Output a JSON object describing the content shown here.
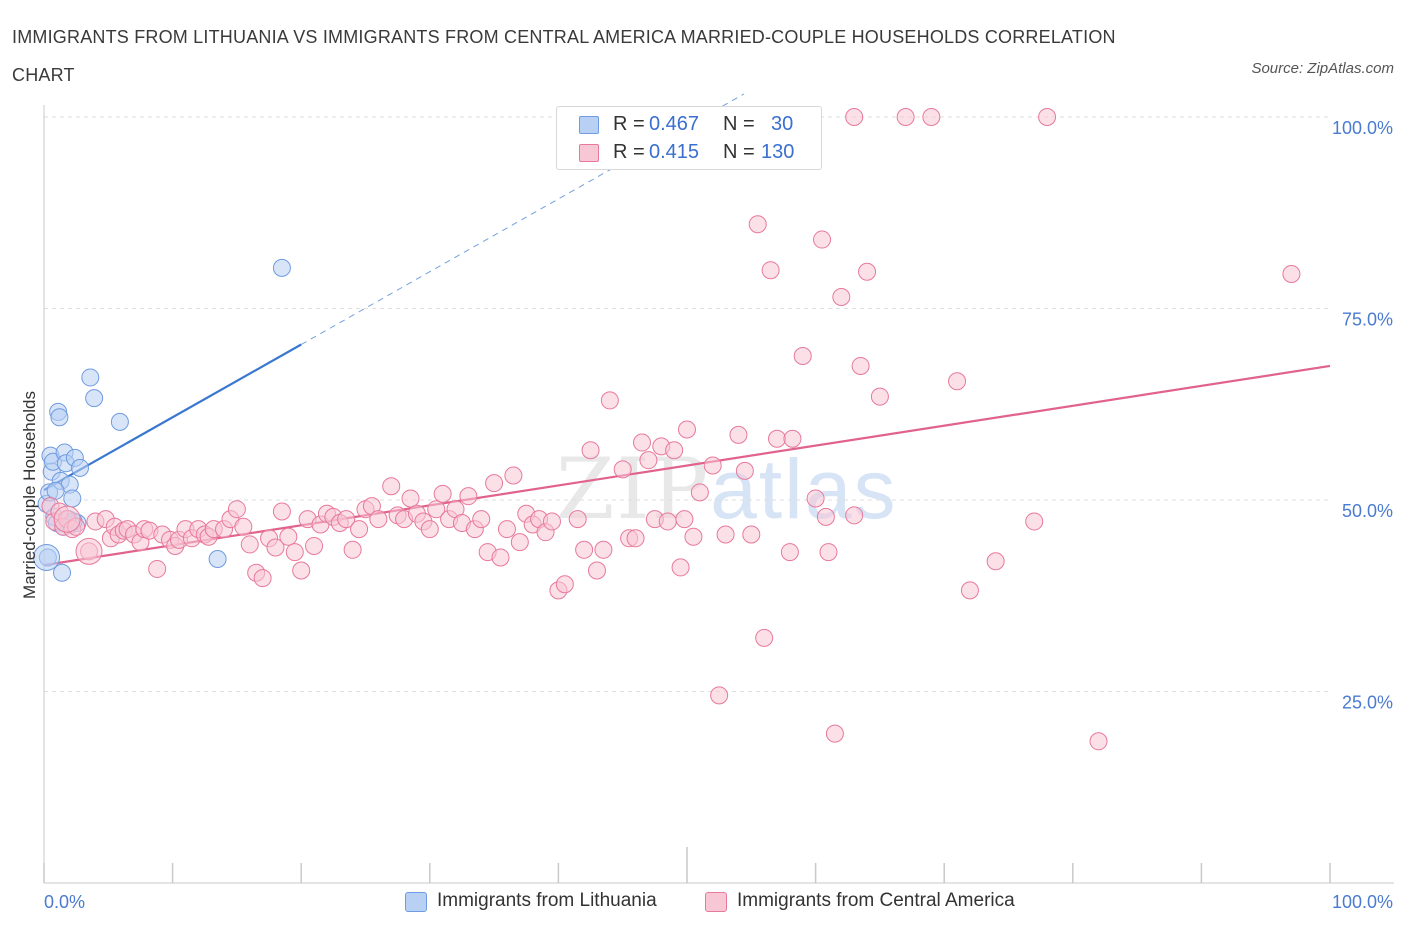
{
  "title": "IMMIGRANTS FROM LITHUANIA VS IMMIGRANTS FROM CENTRAL AMERICA MARRIED-COUPLE HOUSEHOLDS CORRELATION CHART",
  "source": "Source: ZipAtlas.com",
  "watermark": {
    "zip": "ZIP",
    "atlas": "atlas"
  },
  "colors": {
    "blue": "#6f9be0",
    "blue_fill": "#b8d0f4",
    "blue_line": "#3a78d0",
    "pink": "#e8799c",
    "pink_fill": "#f7c7d6",
    "pink_line": "#e0628d",
    "axis_text": "#4a7bd0",
    "grid": "#dedede"
  },
  "legend": {
    "rows": [
      {
        "r_label": "R =",
        "r_value": "0.467",
        "n_label": "N =",
        "n_value": "30"
      },
      {
        "r_label": "R =",
        "r_value": "0.415",
        "n_label": "N =",
        "n_value": "130"
      }
    ]
  },
  "chart_data": {
    "type": "scatter",
    "title": "IMMIGRANTS FROM LITHUANIA VS IMMIGRANTS FROM CENTRAL AMERICA MARRIED-COUPLE HOUSEHOLDS CORRELATION CHART",
    "xlabel": "",
    "ylabel": "Married-couple Households",
    "xlim": [
      0,
      100
    ],
    "ylim": [
      0,
      100
    ],
    "x_tick_labels": [
      "0.0%",
      "100.0%"
    ],
    "y_tick_labels": [
      "100.0%",
      "75.0%",
      "50.0%",
      "25.0%"
    ],
    "y_ticks": [
      100,
      75,
      50,
      25
    ],
    "grid": true,
    "series": [
      {
        "name": "Immigrants from Lithuania",
        "color": "blue",
        "trend": {
          "x0": 0,
          "y0": 51.3,
          "x1": 20,
          "y1": 70.3,
          "dashed_to_x": 100,
          "dashed_to_y": 146.3
        },
        "points": [
          [
            0.2,
            49.5
          ],
          [
            0.4,
            51
          ],
          [
            0.5,
            55.8
          ],
          [
            0.6,
            53.7
          ],
          [
            0.7,
            55
          ],
          [
            0.8,
            47.8
          ],
          [
            1.0,
            47
          ],
          [
            1.1,
            61.5
          ],
          [
            1.2,
            60.8
          ],
          [
            1.3,
            52.5
          ],
          [
            1.4,
            40.5
          ],
          [
            1.5,
            46.5
          ],
          [
            1.6,
            56.2
          ],
          [
            1.7,
            54.8
          ],
          [
            1.8,
            47.5
          ],
          [
            1.9,
            47.5
          ],
          [
            2.0,
            52
          ],
          [
            2.1,
            46.8
          ],
          [
            2.2,
            50.2
          ],
          [
            2.4,
            55.5
          ],
          [
            2.6,
            47
          ],
          [
            2.8,
            54.2
          ],
          [
            3.6,
            66
          ],
          [
            3.9,
            63.3
          ],
          [
            5.9,
            60.2
          ],
          [
            13.5,
            42.3
          ],
          [
            18.5,
            80.3
          ],
          [
            0.3,
            42.5
          ],
          [
            0.9,
            51.2
          ],
          [
            2.3,
            47.2
          ]
        ],
        "large_points": [
          [
            0.2,
            42.5
          ]
        ]
      },
      {
        "name": "Immigrants from Central America",
        "color": "pink",
        "trend": {
          "x0": 0,
          "y0": 41.5,
          "x1": 100,
          "y1": 67.5
        },
        "points": [
          [
            0.5,
            49.2
          ],
          [
            0.8,
            47.2
          ],
          [
            1.2,
            48.5
          ],
          [
            1.5,
            46.5
          ],
          [
            1.8,
            47.5
          ],
          [
            2.2,
            46.2
          ],
          [
            2.5,
            46.5
          ],
          [
            3.5,
            43.3
          ],
          [
            4.0,
            47.2
          ],
          [
            4.8,
            47.5
          ],
          [
            5.2,
            45
          ],
          [
            5.5,
            46.5
          ],
          [
            5.8,
            45.5
          ],
          [
            6.2,
            46
          ],
          [
            6.5,
            46.2
          ],
          [
            7.0,
            45.5
          ],
          [
            7.5,
            44.5
          ],
          [
            7.8,
            46.2
          ],
          [
            8.2,
            46
          ],
          [
            8.8,
            41
          ],
          [
            9.2,
            45.5
          ],
          [
            9.8,
            44.8
          ],
          [
            10.2,
            44
          ],
          [
            10.5,
            44.8
          ],
          [
            11.0,
            46.2
          ],
          [
            11.5,
            45
          ],
          [
            12.0,
            46.2
          ],
          [
            12.5,
            45.5
          ],
          [
            12.8,
            45.2
          ],
          [
            13.2,
            46.2
          ],
          [
            14.0,
            46.2
          ],
          [
            14.5,
            47.5
          ],
          [
            15.0,
            48.8
          ],
          [
            15.5,
            46.5
          ],
          [
            16.0,
            44.2
          ],
          [
            16.5,
            40.5
          ],
          [
            17.0,
            39.8
          ],
          [
            17.5,
            45
          ],
          [
            18.0,
            43.8
          ],
          [
            18.5,
            48.5
          ],
          [
            19.0,
            45.2
          ],
          [
            19.5,
            43.2
          ],
          [
            20.0,
            40.8
          ],
          [
            20.5,
            47.5
          ],
          [
            21.0,
            44
          ],
          [
            21.5,
            46.8
          ],
          [
            22.0,
            48.2
          ],
          [
            22.5,
            47.8
          ],
          [
            23.0,
            47
          ],
          [
            23.5,
            47.5
          ],
          [
            24.0,
            43.5
          ],
          [
            24.5,
            46.2
          ],
          [
            25.0,
            48.8
          ],
          [
            25.5,
            49.2
          ],
          [
            26.0,
            47.5
          ],
          [
            27.0,
            51.8
          ],
          [
            27.5,
            48
          ],
          [
            28.0,
            47.5
          ],
          [
            28.5,
            50.2
          ],
          [
            29.0,
            48.2
          ],
          [
            29.5,
            47.2
          ],
          [
            30.0,
            46.2
          ],
          [
            30.5,
            48.8
          ],
          [
            31.0,
            50.8
          ],
          [
            31.5,
            47.5
          ],
          [
            32.0,
            48.8
          ],
          [
            32.5,
            47
          ],
          [
            33.0,
            50.5
          ],
          [
            33.5,
            46.2
          ],
          [
            34.0,
            47.5
          ],
          [
            34.5,
            43.2
          ],
          [
            35.0,
            52.2
          ],
          [
            35.5,
            42.5
          ],
          [
            36.0,
            46.2
          ],
          [
            36.5,
            53.2
          ],
          [
            37.0,
            44.5
          ],
          [
            37.5,
            48.2
          ],
          [
            38.0,
            46.8
          ],
          [
            38.5,
            47.5
          ],
          [
            39.0,
            45.8
          ],
          [
            39.5,
            47.2
          ],
          [
            40.0,
            38.2
          ],
          [
            40.5,
            39
          ],
          [
            41.5,
            47.5
          ],
          [
            42.0,
            43.5
          ],
          [
            42.5,
            56.5
          ],
          [
            43.0,
            40.8
          ],
          [
            43.5,
            43.5
          ],
          [
            44.0,
            63
          ],
          [
            45.0,
            54
          ],
          [
            45.5,
            45
          ],
          [
            46.0,
            45
          ],
          [
            46.5,
            57.5
          ],
          [
            47.0,
            55.2
          ],
          [
            47.5,
            47.5
          ],
          [
            48.0,
            57
          ],
          [
            48.5,
            47.2
          ],
          [
            49.0,
            56.5
          ],
          [
            49.5,
            41.2
          ],
          [
            50.0,
            59.2
          ],
          [
            50.5,
            45.2
          ],
          [
            51.0,
            51
          ],
          [
            52.0,
            54.5
          ],
          [
            52.5,
            24.5
          ],
          [
            53.0,
            45.5
          ],
          [
            54.0,
            58.5
          ],
          [
            54.5,
            53.8
          ],
          [
            55.0,
            45.5
          ],
          [
            55.5,
            86
          ],
          [
            56.0,
            32
          ],
          [
            56.5,
            80
          ],
          [
            57.0,
            58
          ],
          [
            58.0,
            43.2
          ],
          [
            59.0,
            68.8
          ],
          [
            60.0,
            50.2
          ],
          [
            60.5,
            84
          ],
          [
            61.0,
            43.2
          ],
          [
            61.5,
            19.5
          ],
          [
            62.0,
            76.5
          ],
          [
            63.0,
            48
          ],
          [
            63.5,
            67.5
          ],
          [
            64.0,
            79.8
          ],
          [
            65.0,
            63.5
          ],
          [
            71.0,
            65.5
          ],
          [
            72.0,
            38.2
          ],
          [
            74.0,
            42
          ],
          [
            77.0,
            47.2
          ],
          [
            82.0,
            18.5
          ],
          [
            97.0,
            79.5
          ],
          [
            63.0,
            100
          ],
          [
            67.0,
            100
          ],
          [
            69.0,
            100
          ],
          [
            78.0,
            100
          ],
          [
            60.8,
            47.8
          ],
          [
            49.8,
            47.5
          ],
          [
            58.2,
            58.0
          ]
        ],
        "large_points": [
          [
            3.5,
            43.3
          ],
          [
            1.8,
            47.5
          ]
        ]
      }
    ]
  }
}
